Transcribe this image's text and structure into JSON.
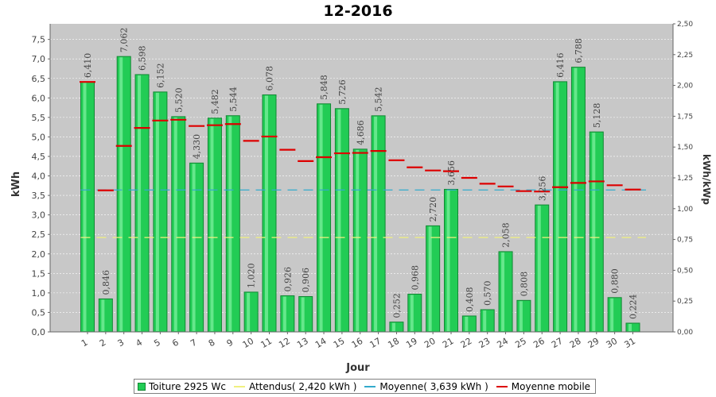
{
  "chart_data": {
    "type": "bar",
    "title": "12-2016",
    "xlabel": "Jour",
    "ylabel": "kWh",
    "y2label": "kWh/kWp",
    "ylim": [
      0,
      7.9
    ],
    "y2lim": [
      0,
      2.5
    ],
    "yticks": [
      "0,0",
      "0,5",
      "1,0",
      "1,5",
      "2,0",
      "2,5",
      "3,0",
      "3,5",
      "4,0",
      "4,5",
      "5,0",
      "5,5",
      "6,0",
      "6,5",
      "7,0",
      "7,5"
    ],
    "y2ticks": [
      "0,00",
      "0,25",
      "0,50",
      "0,75",
      "1,00",
      "1,25",
      "1,50",
      "1,75",
      "2,00",
      "2,25",
      "2,50"
    ],
    "categories": [
      "1",
      "2",
      "3",
      "4",
      "5",
      "6",
      "7",
      "8",
      "9",
      "10",
      "11",
      "12",
      "13",
      "14",
      "15",
      "16",
      "17",
      "18",
      "19",
      "20",
      "21",
      "22",
      "23",
      "24",
      "25",
      "26",
      "27",
      "28",
      "29",
      "30",
      "31"
    ],
    "series": [
      {
        "name": "Toiture 2925 Wc",
        "values": [
          6.41,
          0.846,
          7.062,
          6.598,
          6.152,
          5.52,
          4.33,
          5.482,
          5.544,
          1.02,
          6.078,
          0.926,
          0.906,
          5.848,
          5.726,
          4.686,
          5.542,
          0.252,
          0.968,
          2.72,
          3.656,
          0.408,
          0.57,
          2.058,
          0.808,
          3.256,
          6.416,
          6.788,
          5.128,
          0.88,
          0.224
        ],
        "labels": [
          "6,410",
          "0,846",
          "7,062",
          "6,598",
          "6,152",
          "5,520",
          "4,330",
          "5,482",
          "5,544",
          "1,020",
          "6,078",
          "0,926",
          "0,906",
          "5,848",
          "5,726",
          "4,686",
          "5,542",
          "0,252",
          "0,968",
          "2,720",
          "3,656",
          "0,408",
          "0,570",
          "2,058",
          "0,808",
          "3,256",
          "6,416",
          "6,788",
          "5,128",
          "0,880",
          "0,224"
        ]
      },
      {
        "name": "Moyenne mobile",
        "values": [
          6.41,
          3.63,
          4.77,
          5.23,
          5.42,
          5.44,
          5.28,
          5.3,
          5.33,
          4.9,
          5.01,
          4.67,
          4.38,
          4.48,
          4.58,
          4.59,
          4.64,
          4.4,
          4.22,
          4.14,
          4.12,
          3.95,
          3.8,
          3.73,
          3.61,
          3.6,
          3.71,
          3.82,
          3.86,
          3.76,
          3.65
        ]
      }
    ],
    "reference_lines": [
      {
        "name": "Attendus( 2,420 kWh )",
        "value": 2.42,
        "color": "#f0f080"
      },
      {
        "name": "Moyenne( 3,639 kWh )",
        "value": 3.639,
        "color": "#33aacc"
      }
    ],
    "legend_position": "bottom",
    "grid": true,
    "colors": {
      "bar_fill": "#22cc55",
      "bar_highlight": "#77ee99",
      "bar_edge": "#118833",
      "plot_bg": "#c8c8c8",
      "grid": "#ffffff",
      "moving_avg": "#dd0000"
    }
  },
  "legend": {
    "items": [
      {
        "label": "Toiture 2925 Wc",
        "kind": "box"
      },
      {
        "label": "Attendus( 2,420 kWh )",
        "kind": "line",
        "color": "#f0f080"
      },
      {
        "label": "Moyenne( 3,639 kWh )",
        "kind": "line",
        "color": "#33aacc"
      },
      {
        "label": "Moyenne mobile",
        "kind": "line",
        "color": "#dd0000"
      }
    ]
  }
}
